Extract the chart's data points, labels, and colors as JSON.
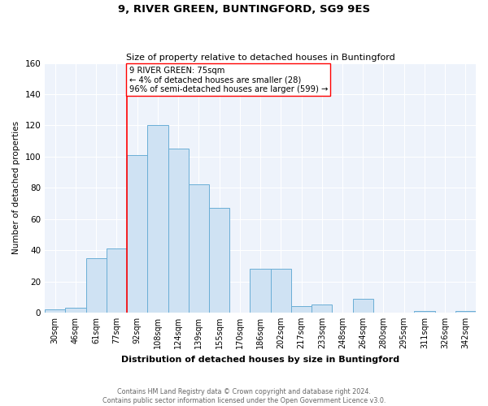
{
  "title": "9, RIVER GREEN, BUNTINGFORD, SG9 9ES",
  "subtitle": "Size of property relative to detached houses in Buntingford",
  "xlabel": "Distribution of detached houses by size in Buntingford",
  "ylabel": "Number of detached properties",
  "bar_color": "#cfe2f3",
  "bar_edge_color": "#6aaed6",
  "background_color": "#eef3fb",
  "grid_color": "#ffffff",
  "categories": [
    "30sqm",
    "46sqm",
    "61sqm",
    "77sqm",
    "92sqm",
    "108sqm",
    "124sqm",
    "139sqm",
    "155sqm",
    "170sqm",
    "186sqm",
    "202sqm",
    "217sqm",
    "233sqm",
    "248sqm",
    "264sqm",
    "280sqm",
    "295sqm",
    "311sqm",
    "326sqm",
    "342sqm"
  ],
  "values": [
    2,
    3,
    35,
    41,
    101,
    120,
    105,
    82,
    67,
    0,
    28,
    28,
    4,
    5,
    0,
    9,
    0,
    0,
    1,
    0,
    1
  ],
  "ylim": [
    0,
    160
  ],
  "yticks": [
    0,
    20,
    40,
    60,
    80,
    100,
    120,
    140,
    160
  ],
  "property_line_index": 3,
  "annotation_title": "9 RIVER GREEN: 75sqm",
  "annotation_line1": "← 4% of detached houses are smaller (28)",
  "annotation_line2": "96% of semi-detached houses are larger (599) →",
  "footer_line1": "Contains HM Land Registry data © Crown copyright and database right 2024.",
  "footer_line2": "Contains public sector information licensed under the Open Government Licence v3.0."
}
